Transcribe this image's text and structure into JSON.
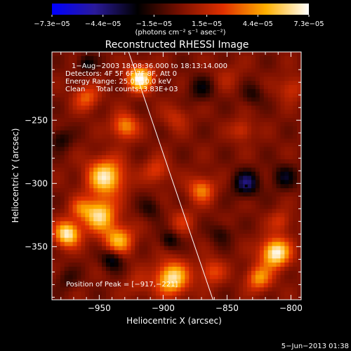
{
  "chart_data": {
    "type": "heatmap",
    "title": "Reconstructed RHESSI Image",
    "xlabel": "Heliocentric X (arcsec)",
    "ylabel": "Heliocentric Y (arcsec)",
    "xlim": [
      -987,
      -792
    ],
    "ylim": [
      -392,
      -196
    ],
    "x_ticks": [
      -950,
      -900,
      -850,
      -800
    ],
    "x_tick_labels": [
      "−950",
      "−900",
      "−850",
      "−800"
    ],
    "y_ticks": [
      -250,
      -300,
      -350
    ],
    "y_tick_labels": [
      "−250",
      "−300",
      "−350"
    ],
    "colorbar": {
      "min": -7.3e-05,
      "max": 7.3e-05,
      "tick_values": [
        -7.3e-05,
        -4.4e-05,
        -1.5e-05,
        1.5e-05,
        4.4e-05,
        7.3e-05
      ],
      "tick_labels": [
        "−7.3e−05",
        "−4.4e−05",
        "−1.5e−05",
        "1.5e−05",
        "4.4e−05",
        "7.3e−05"
      ],
      "units_label": "(photons cm⁻² s⁻¹ asec⁻²)",
      "colormap": [
        "#0000ff",
        "#2a1a9a",
        "#000000",
        "#7a1000",
        "#e03000",
        "#ffb000",
        "#ffffff"
      ]
    },
    "annotations": {
      "time": "1−Aug−2003 18:08:36.000 to 18:13:14.000",
      "detectors": "Detectors: 4F 5F 6F 7F 8F, Att 0",
      "energy": "Energy Range: 25.0−50.0 keV",
      "clean": "Clean     Total counts: 3.83E+03",
      "peak": "Position of Peak = [−917,−221]"
    },
    "peak": [
      -917,
      -221
    ],
    "marker": [
      -835,
      -302
    ],
    "limb_line": [
      [
        -927,
        -196
      ],
      [
        -861,
        -392
      ]
    ],
    "blobs": [
      {
        "x": -918,
        "y": -217,
        "amp": 1.0,
        "s": 7
      },
      {
        "x": -945,
        "y": -295,
        "amp": 0.9,
        "s": 10
      },
      {
        "x": -950,
        "y": -325,
        "amp": 0.85,
        "s": 9
      },
      {
        "x": -935,
        "y": -345,
        "amp": 0.7,
        "s": 8
      },
      {
        "x": -960,
        "y": -232,
        "amp": 0.45,
        "s": 7
      },
      {
        "x": -930,
        "y": -255,
        "amp": 0.6,
        "s": 7
      },
      {
        "x": -965,
        "y": -320,
        "amp": 0.35,
        "s": 6
      },
      {
        "x": -975,
        "y": -340,
        "amp": 0.95,
        "s": 7
      },
      {
        "x": -905,
        "y": -290,
        "amp": 0.35,
        "s": 7
      },
      {
        "x": -890,
        "y": -248,
        "amp": 0.25,
        "s": 7
      },
      {
        "x": -870,
        "y": -305,
        "amp": 0.55,
        "s": 7
      },
      {
        "x": -885,
        "y": -330,
        "amp": 0.25,
        "s": 7
      },
      {
        "x": -893,
        "y": -375,
        "amp": 0.9,
        "s": 9
      },
      {
        "x": -862,
        "y": -370,
        "amp": 0.4,
        "s": 7
      },
      {
        "x": -812,
        "y": -355,
        "amp": 1.0,
        "s": 8
      },
      {
        "x": -825,
        "y": -375,
        "amp": 0.6,
        "s": 7
      },
      {
        "x": -808,
        "y": -330,
        "amp": 0.3,
        "s": 6
      },
      {
        "x": -838,
        "y": -258,
        "amp": 0.3,
        "s": 6
      },
      {
        "x": -800,
        "y": -225,
        "amp": 0.3,
        "s": 7
      },
      {
        "x": -850,
        "y": -215,
        "amp": 0.15,
        "s": 8
      },
      {
        "x": -920,
        "y": -380,
        "amp": 0.2,
        "s": 7
      },
      {
        "x": -835,
        "y": -300,
        "amp": -0.55,
        "s": 7
      },
      {
        "x": -940,
        "y": -360,
        "amp": -0.45,
        "s": 6
      },
      {
        "x": -960,
        "y": -205,
        "amp": -0.35,
        "s": 5
      },
      {
        "x": -805,
        "y": -295,
        "amp": -0.35,
        "s": 7
      },
      {
        "x": -870,
        "y": -225,
        "amp": -0.3,
        "s": 7
      },
      {
        "x": -895,
        "y": -345,
        "amp": -0.35,
        "s": 5
      },
      {
        "x": -830,
        "y": -230,
        "amp": -0.25,
        "s": 6
      },
      {
        "x": -910,
        "y": -320,
        "amp": -0.25,
        "s": 6
      },
      {
        "x": -980,
        "y": -265,
        "amp": -0.3,
        "s": 6
      },
      {
        "x": -855,
        "y": -340,
        "amp": -0.25,
        "s": 6
      },
      {
        "x": -975,
        "y": -375,
        "amp": -0.2,
        "s": 6
      }
    ]
  },
  "footer": {
    "timestamp": "5−Jun−2013 01:38"
  }
}
